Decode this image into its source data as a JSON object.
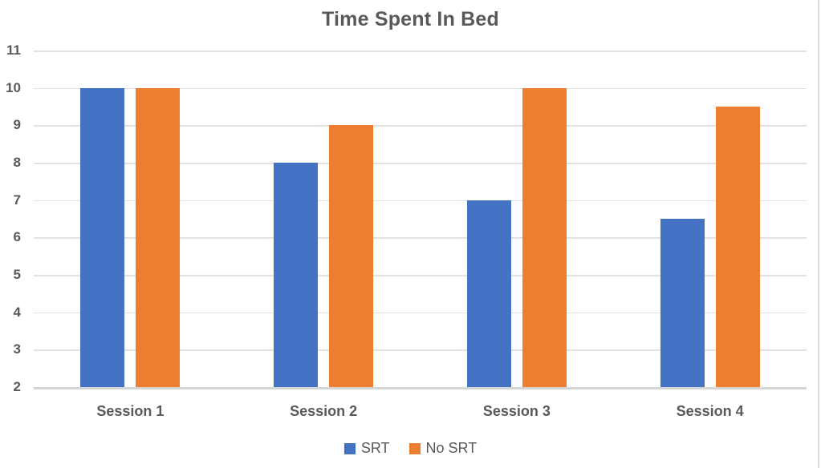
{
  "chart_data": {
    "type": "bar",
    "title": "Time Spent In Bed",
    "categories": [
      "Session 1",
      "Session 2",
      "Session 3",
      "Session 4"
    ],
    "series": [
      {
        "name": "SRT",
        "color": "#4472C4",
        "values": [
          10,
          8,
          7,
          6.5
        ]
      },
      {
        "name": "No SRT",
        "color": "#ED7D31",
        "values": [
          10,
          9,
          10,
          9.5
        ]
      }
    ],
    "y_ticks": [
      11,
      10,
      9,
      8,
      7,
      6,
      5,
      4,
      3,
      2
    ],
    "ylim": [
      2,
      11
    ],
    "xlabel": "",
    "ylabel": "",
    "grid": true,
    "legend_position": "bottom"
  },
  "colors": {
    "title_text": "#595959",
    "axis_text": "#595959",
    "gridline": "#E2E2E2",
    "axis_line": "#D5D5D5",
    "background": "#FFFFFF",
    "right_border": "#DCDCDC",
    "series_srt": "#4472C4",
    "series_no_srt": "#ED7D31"
  }
}
